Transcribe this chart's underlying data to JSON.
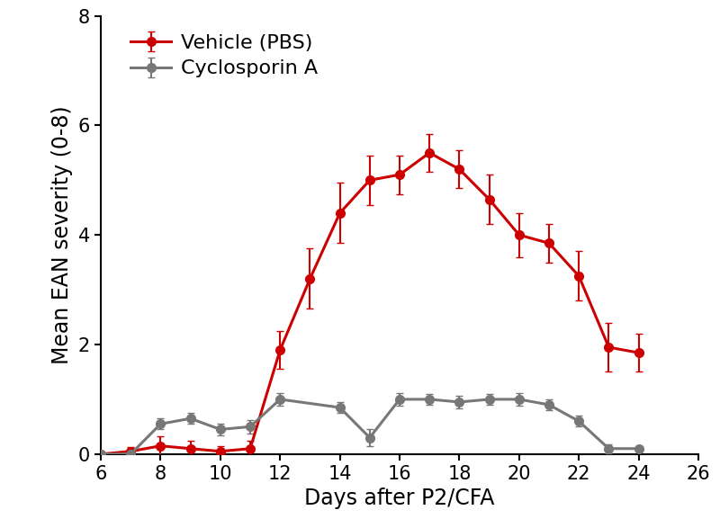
{
  "vehicle_x": [
    6,
    7,
    8,
    9,
    10,
    11,
    12,
    13,
    14,
    15,
    16,
    17,
    18,
    19,
    20,
    21,
    22,
    23,
    24
  ],
  "vehicle_y": [
    0.0,
    0.05,
    0.15,
    0.1,
    0.05,
    0.1,
    1.9,
    3.2,
    4.4,
    5.0,
    5.1,
    5.5,
    5.2,
    4.65,
    4.0,
    3.85,
    3.25,
    1.95,
    1.85
  ],
  "vehicle_err": [
    0.0,
    0.08,
    0.18,
    0.15,
    0.1,
    0.15,
    0.35,
    0.55,
    0.55,
    0.45,
    0.35,
    0.35,
    0.35,
    0.45,
    0.4,
    0.35,
    0.45,
    0.45,
    0.35
  ],
  "cyclo_x": [
    6,
    7,
    8,
    9,
    10,
    11,
    12,
    14,
    15,
    16,
    17,
    18,
    19,
    20,
    21,
    22,
    23,
    24
  ],
  "cyclo_y": [
    0.0,
    0.0,
    0.55,
    0.65,
    0.45,
    0.5,
    1.0,
    0.85,
    0.3,
    1.0,
    1.0,
    0.95,
    1.0,
    1.0,
    0.9,
    0.6,
    0.1,
    0.1
  ],
  "cyclo_err": [
    0.0,
    0.05,
    0.1,
    0.1,
    0.1,
    0.12,
    0.12,
    0.1,
    0.15,
    0.12,
    0.1,
    0.12,
    0.1,
    0.12,
    0.1,
    0.1,
    0.08,
    0.05
  ],
  "vehicle_color": "#cc0000",
  "cyclo_color": "#777777",
  "vehicle_label": "Vehicle (PBS)",
  "cyclo_label": "Cyclosporin A",
  "xlabel": "Days after P2/CFA",
  "ylabel": "Mean EAN severity (0-8)",
  "xlim": [
    6,
    26
  ],
  "ylim": [
    0,
    8
  ],
  "xticks": [
    6,
    8,
    10,
    12,
    14,
    16,
    18,
    20,
    22,
    24,
    26
  ],
  "yticks": [
    0,
    2,
    4,
    6,
    8
  ],
  "label_fontsize": 17,
  "tick_fontsize": 15,
  "legend_fontsize": 16,
  "linewidth": 2.2,
  "markersize": 7,
  "capsize": 3,
  "elinewidth": 1.5
}
